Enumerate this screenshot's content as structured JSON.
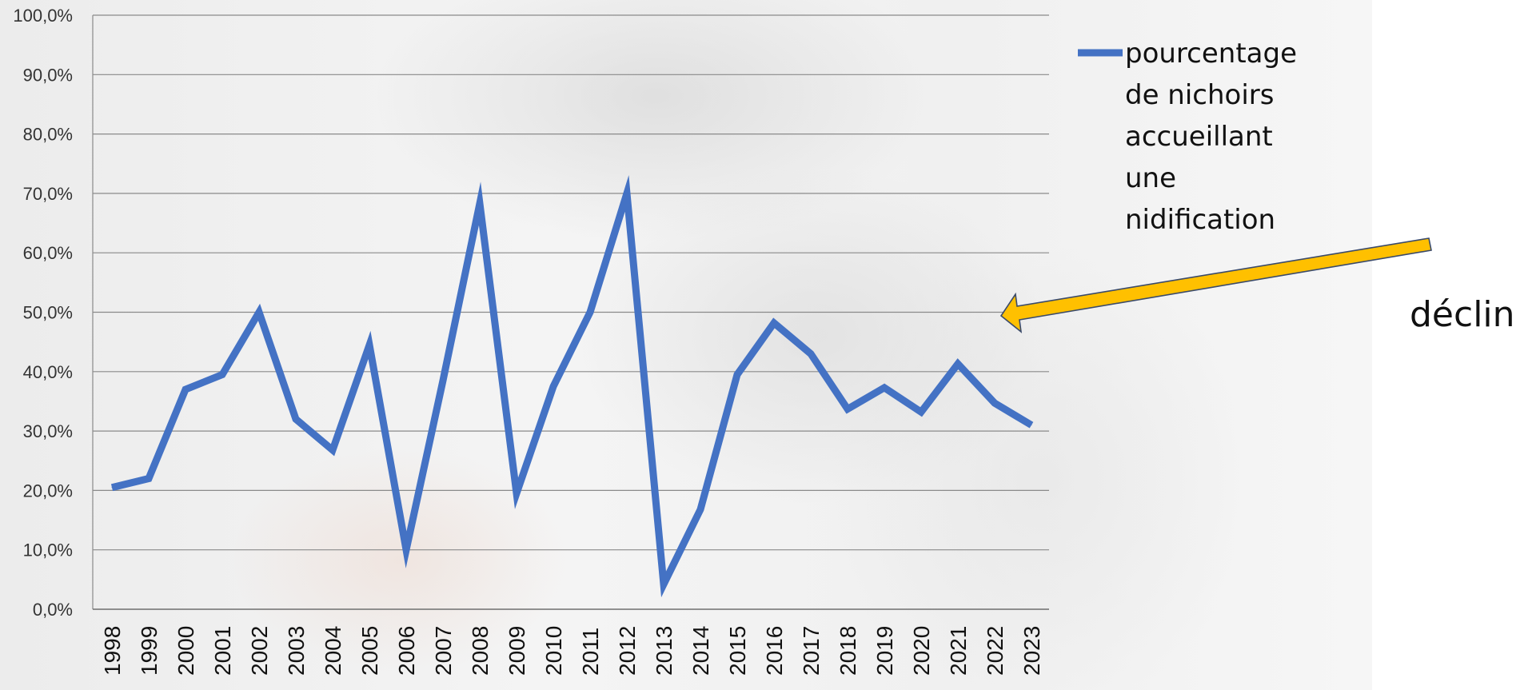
{
  "chart_data": {
    "type": "line",
    "x": [
      "1998",
      "1999",
      "2000",
      "2001",
      "2002",
      "2003",
      "2004",
      "2005",
      "2006",
      "2007",
      "2008",
      "2009",
      "2010",
      "2011",
      "2012",
      "2013",
      "2014",
      "2015",
      "2016",
      "2017",
      "2018",
      "2019",
      "2020",
      "2021",
      "2022",
      "2023"
    ],
    "series": [
      {
        "name": "pourcentage de nichoirs accueillant une nidification",
        "name_lines": [
          "pourcentage",
          "de nichoirs",
          "accueillant",
          "une",
          "nidification"
        ],
        "color": "#4472C4",
        "values": [
          20.5,
          22.0,
          37.0,
          39.5,
          50.0,
          32.0,
          26.8,
          44.5,
          10.0,
          38.5,
          68.3,
          19.5,
          37.5,
          50.0,
          70.0,
          4.2,
          16.8,
          39.5,
          48.2,
          43.0,
          33.7,
          37.3,
          33.2,
          41.3,
          34.7,
          31.0
        ]
      }
    ],
    "ylim": [
      0,
      100
    ],
    "y_ticks": [
      "0,0%",
      "10,0%",
      "20,0%",
      "30,0%",
      "40,0%",
      "50,0%",
      "60,0%",
      "70,0%",
      "80,0%",
      "90,0%",
      "100,0%"
    ],
    "grid": true,
    "legend_position": "top-right",
    "annotations": [
      {
        "text": "déclin",
        "arrow_color": "#FFC000"
      }
    ]
  }
}
